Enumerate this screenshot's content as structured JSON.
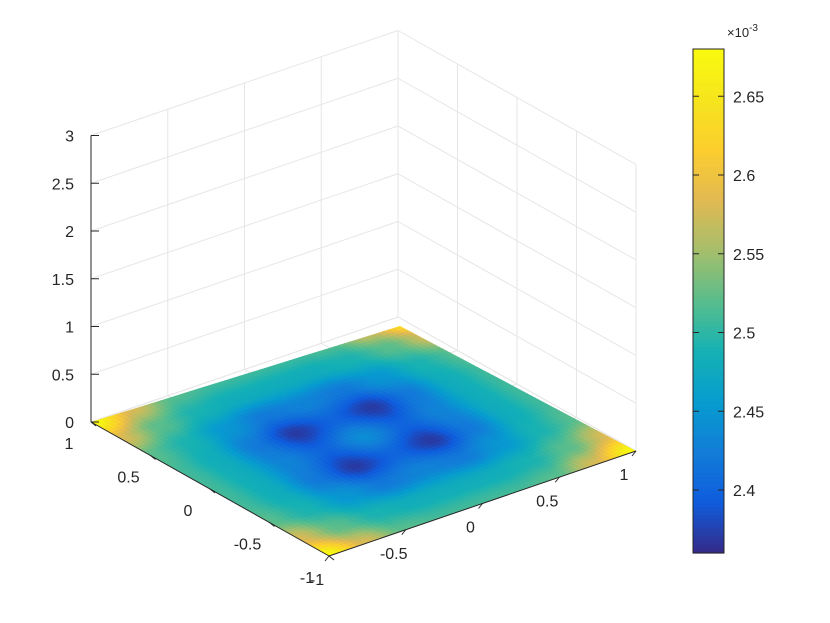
{
  "chart_data": {
    "type": "heatmap",
    "title": "",
    "xlabel": "",
    "ylabel": "",
    "zlabel": "",
    "view": "3-D surface plot, viewed at default azimuth/elevation, surface lying flat at z = 0",
    "x": {
      "ticks": [
        -1,
        -0.5,
        0,
        0.5,
        1
      ],
      "tick_labels": [
        "-1",
        "-0.5",
        "0",
        "0.5",
        "1"
      ],
      "lim": [
        -1,
        1
      ]
    },
    "y": {
      "ticks": [
        -1,
        -0.5,
        0,
        0.5,
        1
      ],
      "tick_labels": [
        "-1",
        "-0.5",
        "0",
        "0.5",
        "1"
      ],
      "lim": [
        -1,
        1
      ]
    },
    "z": {
      "ticks": [
        0,
        0.5,
        1,
        1.5,
        2,
        2.5,
        3
      ],
      "tick_labels": [
        "0",
        "0.5",
        "1",
        "1.5",
        "2",
        "2.5",
        "3"
      ],
      "lim": [
        0,
        3
      ]
    },
    "grid": true,
    "colormap": "parula",
    "colorbar": {
      "location": "right",
      "exponent_label": "×10",
      "exponent_power": "-3",
      "lim": [
        2.36,
        2.68
      ],
      "ticks": [
        2.4,
        2.45,
        2.5,
        2.55,
        2.6,
        2.65
      ],
      "tick_labels": [
        "2.4",
        "2.45",
        "2.5",
        "2.55",
        "2.6",
        "2.65"
      ]
    },
    "surface": {
      "grid_x": [
        -1,
        -0.75,
        -0.5,
        -0.25,
        0,
        0.25,
        0.5,
        0.75,
        1
      ],
      "grid_y": [
        -1,
        -0.75,
        -0.5,
        -0.25,
        0,
        0.25,
        0.5,
        0.75,
        1
      ],
      "values_e3": [
        [
          2.68,
          2.58,
          2.52,
          2.51,
          2.51,
          2.51,
          2.52,
          2.58,
          2.68
        ],
        [
          2.58,
          2.52,
          2.49,
          2.48,
          2.48,
          2.48,
          2.49,
          2.52,
          2.58
        ],
        [
          2.52,
          2.49,
          2.45,
          2.42,
          2.43,
          2.42,
          2.45,
          2.49,
          2.52
        ],
        [
          2.51,
          2.48,
          2.42,
          2.37,
          2.4,
          2.37,
          2.42,
          2.48,
          2.51
        ],
        [
          2.51,
          2.48,
          2.43,
          2.4,
          2.44,
          2.4,
          2.43,
          2.48,
          2.51
        ],
        [
          2.51,
          2.48,
          2.42,
          2.37,
          2.4,
          2.37,
          2.42,
          2.48,
          2.51
        ],
        [
          2.52,
          2.49,
          2.45,
          2.42,
          2.43,
          2.42,
          2.45,
          2.49,
          2.52
        ],
        [
          2.58,
          2.52,
          2.49,
          2.48,
          2.48,
          2.48,
          2.49,
          2.52,
          2.58
        ],
        [
          2.68,
          2.58,
          2.52,
          2.51,
          2.51,
          2.51,
          2.52,
          2.58,
          2.68
        ]
      ]
    }
  }
}
